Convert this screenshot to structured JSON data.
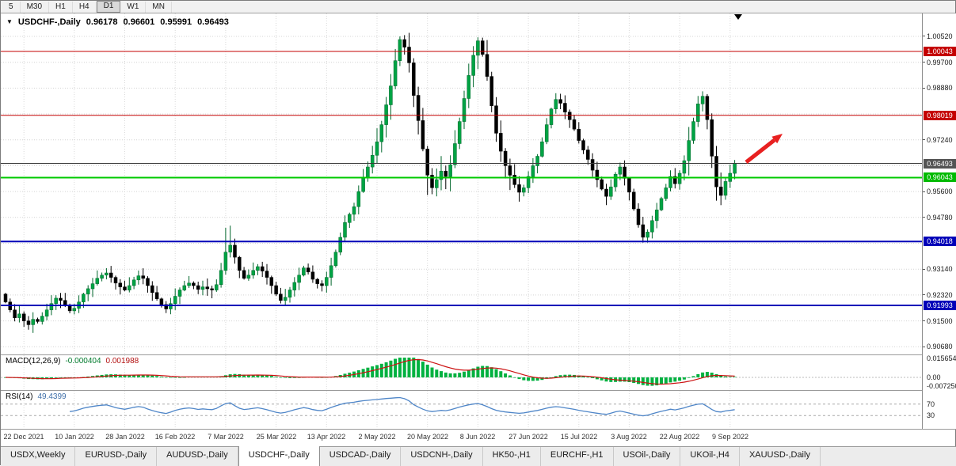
{
  "toolbar": {
    "timeframes": [
      "5",
      "M30",
      "H1",
      "H4",
      "D1",
      "W1",
      "MN"
    ],
    "active": "D1"
  },
  "chart": {
    "header": {
      "symbol_period": "USDCHF-,Daily",
      "open": "0.96178",
      "high": "0.96601",
      "low": "0.95991",
      "close": "0.96493",
      "dropdown_icon": "▼"
    }
  },
  "price_axis": {
    "plain_labels": [
      1.0052,
      0.997,
      0.9888,
      0.9806,
      0.9724,
      0.9642,
      0.956,
      0.9478,
      0.9396,
      0.9314,
      0.9232,
      0.915,
      0.9068
    ],
    "boxed_labels": [
      {
        "price": 1.00043,
        "color": "#c40000"
      },
      {
        "price": 0.98019,
        "color": "#c40000"
      },
      {
        "price": 0.96493,
        "color": "#545454"
      },
      {
        "price": 0.96043,
        "color": "#00ba00"
      },
      {
        "price": 0.94018,
        "color": "#0000b8"
      },
      {
        "price": 0.91993,
        "color": "#0000b8"
      }
    ]
  },
  "chart_data": {
    "type": "candlestick",
    "symbol": "USDCHF-",
    "timeframe": "Daily",
    "last_bar": {
      "open": 0.96178,
      "high": 0.96601,
      "low": 0.95991,
      "close": 0.96493
    },
    "price_range": {
      "top": 1.01247,
      "bottom": 0.90437
    },
    "x_ticks": [
      "22 Dec 2021",
      "10 Jan 2022",
      "28 Jan 2022",
      "16 Feb 2022",
      "7 Mar 2022",
      "25 Mar 2022",
      "13 Apr 2022",
      "2 May 2022",
      "20 May 2022",
      "8 Jun 2022",
      "27 Jun 2022",
      "15 Jul 2022",
      "3 Aug 2022",
      "22 Aug 2022",
      "9 Sep 2022"
    ],
    "first_tick_bar": 4,
    "bars_per_tick": 11,
    "open_first": 0.9235,
    "closes": [
      0.921,
      0.9185,
      0.916,
      0.9172,
      0.915,
      0.9138,
      0.9155,
      0.9148,
      0.9165,
      0.9185,
      0.9205,
      0.9222,
      0.9215,
      0.9198,
      0.9182,
      0.919,
      0.921,
      0.9235,
      0.9252,
      0.9268,
      0.9285,
      0.9295,
      0.9302,
      0.9288,
      0.927,
      0.9258,
      0.9248,
      0.9262,
      0.928,
      0.9293,
      0.9285,
      0.9262,
      0.924,
      0.922,
      0.9202,
      0.9188,
      0.9205,
      0.9228,
      0.9248,
      0.9262,
      0.927,
      0.9262,
      0.925,
      0.9258,
      0.9252,
      0.9248,
      0.9265,
      0.931,
      0.9368,
      0.939,
      0.9352,
      0.931,
      0.9285,
      0.9295,
      0.931,
      0.9322,
      0.9308,
      0.9288,
      0.9262,
      0.9235,
      0.9215,
      0.9225,
      0.9248,
      0.9272,
      0.9295,
      0.9318,
      0.9305,
      0.9282,
      0.9268,
      0.9262,
      0.9288,
      0.9325,
      0.9368,
      0.9415,
      0.9462,
      0.9488,
      0.9512,
      0.956,
      0.9605,
      0.9638,
      0.9675,
      0.9718,
      0.9772,
      0.9835,
      0.9895,
      0.9975,
      1.0042,
      1.0018,
      0.9968,
      0.9865,
      0.9785,
      0.9695,
      0.9612,
      0.9572,
      0.9598,
      0.9625,
      0.9608,
      0.9645,
      0.9712,
      0.9782,
      0.9855,
      0.9928,
      0.9992,
      1.0038,
      0.9995,
      0.9925,
      0.9832,
      0.9745,
      0.9688,
      0.9642,
      0.9612,
      0.9582,
      0.9558,
      0.9572,
      0.9608,
      0.9642,
      0.9672,
      0.9718,
      0.9772,
      0.9822,
      0.9852,
      0.984,
      0.9812,
      0.9788,
      0.9758,
      0.9722,
      0.9692,
      0.9662,
      0.9628,
      0.9598,
      0.9568,
      0.9545,
      0.9575,
      0.9615,
      0.9638,
      0.9602,
      0.9558,
      0.9505,
      0.9455,
      0.9415,
      0.9432,
      0.9468,
      0.9502,
      0.9538,
      0.9572,
      0.9608,
      0.9585,
      0.9618,
      0.9658,
      0.9722,
      0.9782,
      0.9838,
      0.9862,
      0.9788,
      0.9672,
      0.9575,
      0.9548,
      0.9592,
      0.9618,
      0.96493
    ],
    "high_overrides": {
      "48": 0.9445,
      "49": 0.9452,
      "85": 1.0012,
      "86": 1.0052,
      "87": 1.0056,
      "102": 1.0021,
      "103": 1.0049,
      "104": 1.0048,
      "120": 0.9872,
      "152": 0.9878
    },
    "low_overrides": {
      "5": 0.9122,
      "92": 0.9549,
      "112": 0.9528,
      "131": 0.9517,
      "139": 0.9398,
      "156": 0.9517
    },
    "bull_color": "#00a344",
    "bear_color": "#000000",
    "horizontal_lines": [
      {
        "price": 1.00043,
        "color": "#c40000",
        "w": 1
      },
      {
        "price": 0.98019,
        "color": "#c40000",
        "w": 1
      },
      {
        "price": 0.96493,
        "color": "#3a3a3a",
        "w": 1
      },
      {
        "price": 0.96043,
        "color": "#00ca00",
        "w": 2
      },
      {
        "price": 0.94018,
        "color": "#0000b8",
        "w": 2
      },
      {
        "price": 0.91993,
        "color": "#0000b8",
        "w": 2
      }
    ],
    "arrow": {
      "from": [
        941,
        204
      ],
      "to": [
        987,
        168
      ],
      "color": "#e82020"
    },
    "indicators": {
      "macd": {
        "name": "MACD(12,26,9)",
        "value_main": "-0.000404",
        "value_signal": "0.001988",
        "axis_labels": [
          {
            "text": "0.015654",
            "value": 0.015654
          },
          {
            "text": "0.00",
            "value": 0
          },
          {
            "text": "-0.007250",
            "value": -0.00725
          }
        ],
        "histogram_color": "#00b140",
        "signal_color": "#cc1111"
      },
      "rsi": {
        "name": "RSI(14)",
        "value": "49.4399",
        "levels": [
          70,
          30
        ],
        "line_color": "#4f86c8"
      }
    }
  },
  "tabs": {
    "items": [
      "USDX,Weekly",
      "EURUSD-,Daily",
      "AUDUSD-,Daily",
      "USDCHF-,Daily",
      "USDCAD-,Daily",
      "USDCNH-,Daily",
      "HK50-,H1",
      "EURCHF-,H1",
      "USOil-,Daily",
      "UKOil-,H4",
      "XAUUSD-,Daily"
    ],
    "active_index": 3
  }
}
